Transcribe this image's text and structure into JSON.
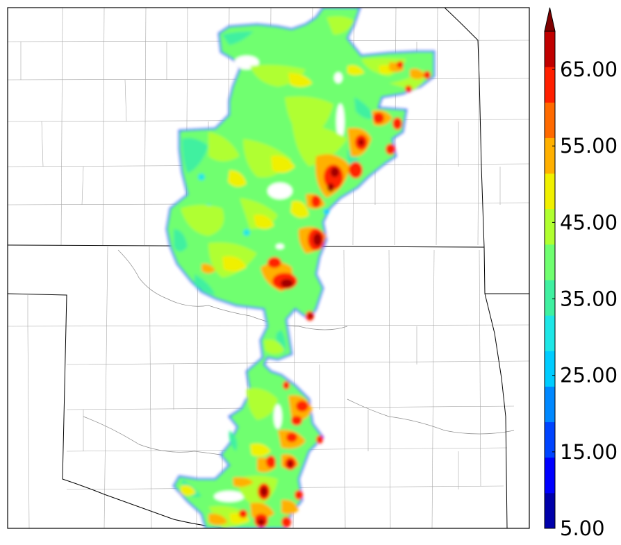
{
  "colorbar": {
    "tick_labels": [
      "5.00",
      "15.00",
      "25.00",
      "35.00",
      "45.00",
      "55.00",
      "65.00"
    ],
    "min": 5,
    "max": 70,
    "step": 5,
    "extend": "max",
    "extend_color": "#7f0000",
    "level_colors": [
      "#0000aa",
      "#0000ff",
      "#0044ff",
      "#0088ff",
      "#00ccff",
      "#1ee6e6",
      "#40f0a0",
      "#70ff70",
      "#b0ff30",
      "#f0f000",
      "#ffb000",
      "#ff6a00",
      "#ff2000",
      "#c00000"
    ]
  },
  "legend_colors": {
    "outline": "#0000ff",
    "state_lines": "#000000",
    "county_lines": "#9a9a9a"
  },
  "field_description": "gridded precipitation/reflectivity-style field over Kansas/Oklahoma counties"
}
